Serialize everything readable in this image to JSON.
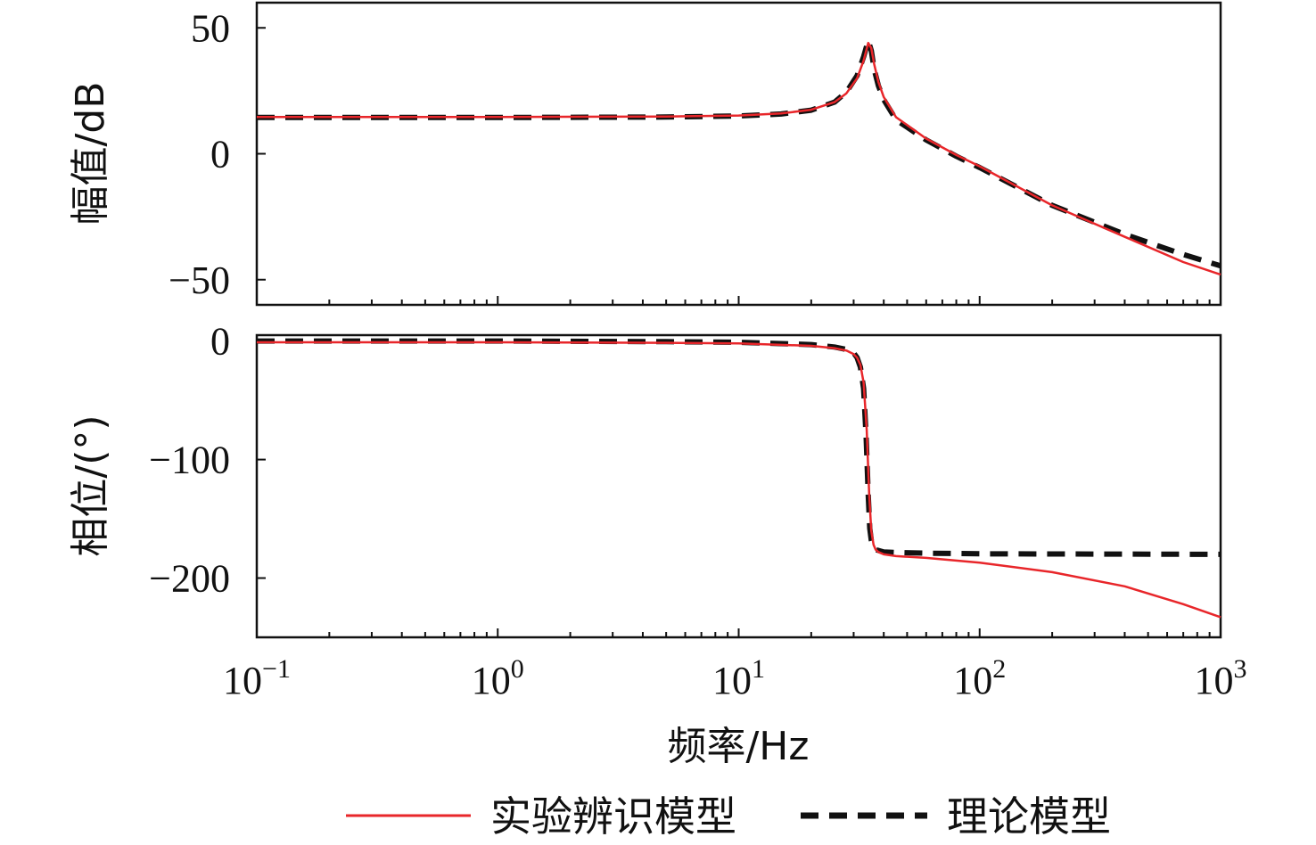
{
  "chart_data": {
    "type": "line",
    "x_scale": "log",
    "xlim": [
      0.1,
      1000
    ],
    "x_ticks": [
      {
        "base": "10",
        "exp": "−1"
      },
      {
        "base": "10",
        "exp": "0"
      },
      {
        "base": "10",
        "exp": "1"
      },
      {
        "base": "10",
        "exp": "2"
      },
      {
        "base": "10",
        "exp": "3"
      }
    ],
    "xlabel": "频率/Hz",
    "legend": {
      "placement": "bottom",
      "entries": [
        {
          "label": "实验辨识模型",
          "color": "#e8262a",
          "style": "solid"
        },
        {
          "label": "理论模型",
          "color": "#111111",
          "style": "dashed"
        }
      ]
    },
    "panels": [
      {
        "name": "magnitude",
        "ylabel": "幅值/dB",
        "ylim": [
          -60,
          60
        ],
        "y_ticks": [
          50,
          0,
          -50
        ],
        "y_tick_labels": [
          "50",
          "0",
          "−50"
        ],
        "series": [
          {
            "name": "实验辨识模型",
            "x": [
              0.1,
              1,
              5,
              10,
              15,
              20,
              25,
              28,
              31,
              33,
              34.5,
              35.5,
              36.5,
              38,
              40,
              45,
              60,
              80,
              100,
              200,
              400,
              700,
              1000
            ],
            "y": [
              14.6,
              14.6,
              14.8,
              15.2,
              16.0,
              17.5,
              20.5,
              24.0,
              30.0,
              37.0,
              44.0,
              42.0,
              35.5,
              28.5,
              22.5,
              14.5,
              6.0,
              -0.5,
              -5.0,
              -20.5,
              -33.0,
              -43.0,
              -48.0
            ]
          },
          {
            "name": "理论模型",
            "x": [
              0.1,
              1,
              5,
              10,
              15,
              20,
              25,
              28,
              31,
              33,
              34.5,
              35.5,
              36.5,
              38,
              40,
              45,
              60,
              80,
              100,
              200,
              400,
              700,
              1000
            ],
            "y": [
              14.4,
              14.4,
              14.6,
              15.0,
              15.8,
              17.3,
              20.5,
              24.5,
              31.0,
              38.5,
              45.0,
              41.0,
              33.5,
              27.0,
              21.5,
              13.5,
              5.5,
              -1.0,
              -5.5,
              -20.5,
              -32.0,
              -40.0,
              -44.5
            ]
          }
        ]
      },
      {
        "name": "phase",
        "ylabel": "相位/(°)",
        "ylim": [
          -250,
          5
        ],
        "y_ticks": [
          0,
          -100,
          -200
        ],
        "y_tick_labels": [
          "0",
          "−100",
          "−200"
        ],
        "series": [
          {
            "name": "实验辨识模型",
            "x": [
              0.1,
              1,
              5,
              10,
              20,
              25,
              28,
              30,
              31,
              32,
              33,
              34,
              34.8,
              35.5,
              36.3,
              37,
              38,
              40,
              45,
              60,
              100,
              200,
              400,
              700,
              1000
            ],
            "y": [
              -1,
              -1,
              -1.5,
              -2,
              -4,
              -6,
              -8,
              -11,
              -14,
              -20,
              -35,
              -75,
              -130,
              -160,
              -172,
              -176,
              -178,
              -180,
              -181.5,
              -183,
              -187,
              -195,
              -207,
              -222,
              -233
            ]
          },
          {
            "name": "理论模型",
            "x": [
              0.1,
              1,
              5,
              10,
              20,
              25,
              28,
              30,
              31,
              32,
              33,
              33.8,
              34.5,
              35,
              35.5,
              36.2,
              37,
              38.5,
              40,
              45,
              60,
              100,
              1000
            ],
            "y": [
              0,
              0,
              -0.5,
              -1,
              -3,
              -5,
              -7,
              -10,
              -14,
              -22,
              -40,
              -80,
              -130,
              -158,
              -168,
              -174,
              -176,
              -177,
              -178,
              -178.5,
              -179,
              -179.5,
              -180
            ]
          }
        ]
      }
    ]
  }
}
